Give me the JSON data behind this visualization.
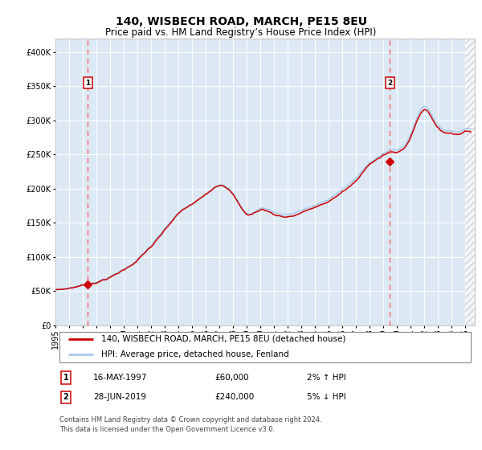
{
  "title": "140, WISBECH ROAD, MARCH, PE15 8EU",
  "subtitle": "Price paid vs. HM Land Registry’s House Price Index (HPI)",
  "legend_line1": "140, WISBECH ROAD, MARCH, PE15 8EU (detached house)",
  "legend_line2": "HPI: Average price, detached house, Fenland",
  "annotation1_date": "16-MAY-1997",
  "annotation1_price": "£60,000",
  "annotation1_hpi": "2% ↑ HPI",
  "annotation2_date": "28-JUN-2019",
  "annotation2_price": "£240,000",
  "annotation2_hpi": "5% ↓ HPI",
  "sale1_year": 1997.37,
  "sale1_value": 60000,
  "sale2_year": 2019.49,
  "sale2_value": 240000,
  "hpi_color": "#a8c8e8",
  "price_color": "#cc0000",
  "dashed_color": "#ff5555",
  "plot_bg_color": "#dce9f5",
  "ylim": [
    0,
    420000
  ],
  "xlim_start": 1995.0,
  "xlim_end": 2025.7,
  "yticks": [
    0,
    50000,
    100000,
    150000,
    200000,
    250000,
    300000,
    350000,
    400000
  ],
  "ytick_labels": [
    "£0",
    "£50K",
    "£100K",
    "£150K",
    "£200K",
    "£250K",
    "£300K",
    "£350K",
    "£400K"
  ],
  "footer": "Contains HM Land Registry data © Crown copyright and database right 2024.\nThis data is licensed under the Open Government Licence v3.0.",
  "title_fontsize": 10,
  "subtitle_fontsize": 8.5,
  "tick_fontsize": 7,
  "legend_fontsize": 7.5,
  "footer_fontsize": 6.0
}
